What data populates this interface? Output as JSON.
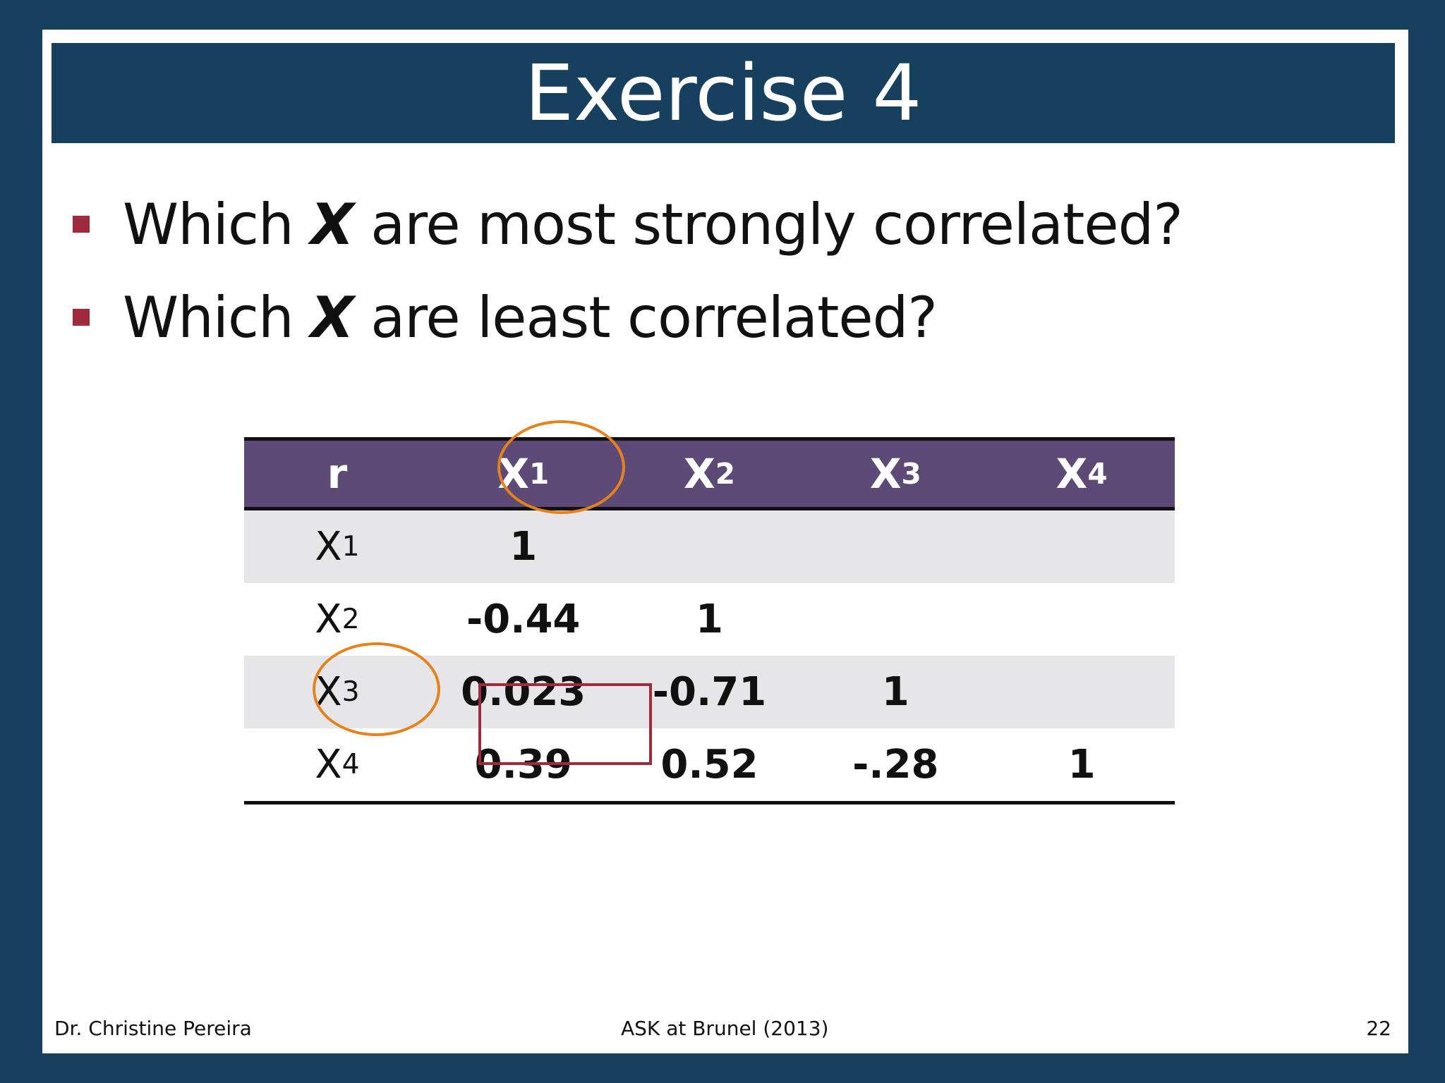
{
  "slide": {
    "title": "Exercise 4",
    "bullets": [
      {
        "before": "Which ",
        "var": "X",
        "after": " are most strongly correlated?"
      },
      {
        "before": "Which ",
        "var": "X",
        "after": " are least correlated?"
      }
    ],
    "table": {
      "corner_label": "r",
      "columns": [
        {
          "base": "X",
          "sub": "1"
        },
        {
          "base": "X",
          "sub": "2"
        },
        {
          "base": "X",
          "sub": "3"
        },
        {
          "base": "X",
          "sub": "4"
        }
      ],
      "rows": [
        {
          "base": "X",
          "sub": "1",
          "values": [
            "1",
            "",
            "",
            ""
          ]
        },
        {
          "base": "X",
          "sub": "2",
          "values": [
            "-0.44",
            "1",
            "",
            ""
          ]
        },
        {
          "base": "X",
          "sub": "3",
          "values": [
            "0.023",
            "-0.71",
            "1",
            ""
          ]
        },
        {
          "base": "X",
          "sub": "4",
          "values": [
            "0.39",
            "0.52",
            "-.28",
            "1"
          ]
        }
      ]
    },
    "footer": {
      "author": "Dr. Christine Pereira",
      "event": "ASK at Brunel (2013)",
      "page_number": "22"
    }
  },
  "colors": {
    "background": "#17405f",
    "table_header": "#5e4a76",
    "bullet": "#9e2a3b",
    "highlight_circle": "#e6821e",
    "highlight_box": "#9e2a3b"
  }
}
